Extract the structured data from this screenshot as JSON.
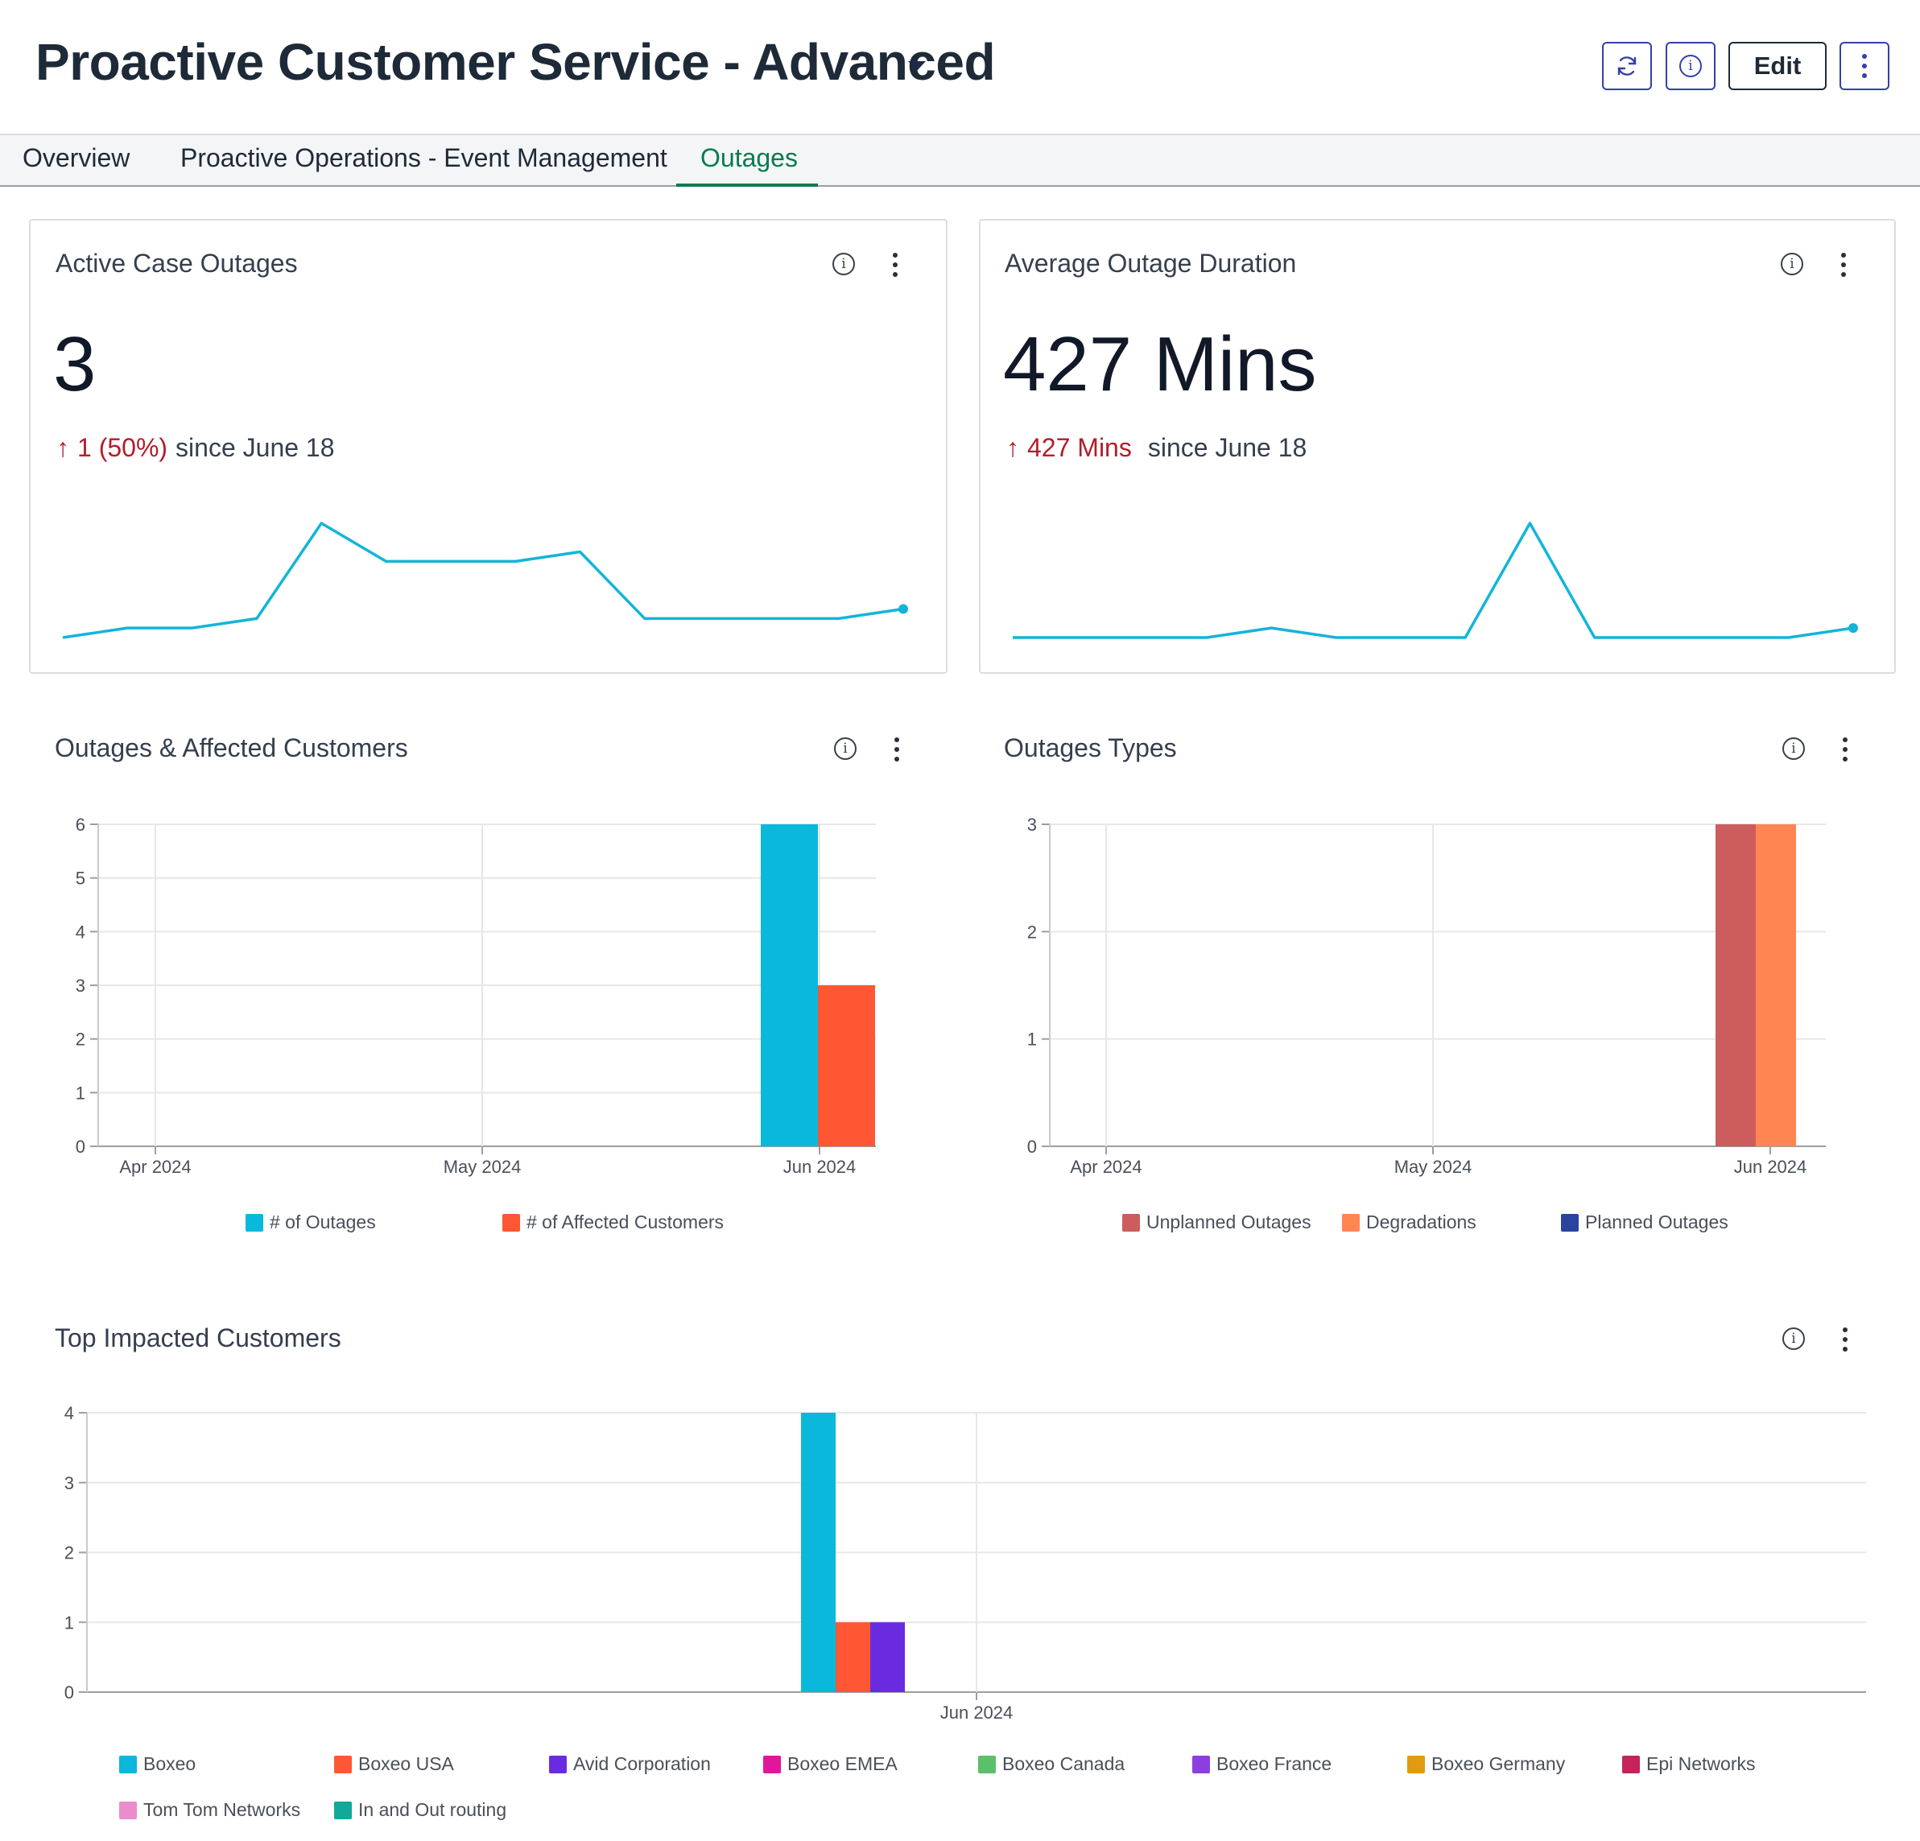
{
  "header": {
    "title": "Proactive Customer Service - Advanced",
    "edit_label": "Edit",
    "icons": [
      "refresh-icon",
      "info-icon",
      "more-vertical-icon",
      "chevron-down-icon"
    ]
  },
  "tabs": [
    {
      "label": "Overview",
      "active": false
    },
    {
      "label": "Proactive Operations - Event Management",
      "active": false
    },
    {
      "label": "Outages",
      "active": true
    }
  ],
  "colors": {
    "accent_tab": "#0a7a4f",
    "sparkline": "#12b5d9",
    "delta_red": "#b31d2b",
    "button_border": "#3340a8"
  },
  "kpi": {
    "active_case_outages": {
      "title": "Active Case Outages",
      "value": "3",
      "delta": "1 (50%)",
      "since": "since June 18",
      "trend": [
        0,
        1,
        1,
        2,
        12,
        8,
        8,
        8,
        9,
        2,
        2,
        2,
        2,
        3
      ]
    },
    "average_outage_duration": {
      "title": "Average Outage Duration",
      "value": "427 Mins",
      "delta": "427 Mins",
      "since": "since June 18",
      "trend": [
        0,
        0,
        0,
        0,
        1,
        0,
        0,
        0,
        12,
        0,
        0,
        0,
        0,
        1
      ]
    }
  },
  "chart_data": [
    {
      "type": "bar",
      "title": "Outages & Affected Customers",
      "categories": [
        "Apr 2024",
        "May 2024",
        "Jun 2024"
      ],
      "ylim": [
        0,
        6
      ],
      "yticks": [
        0,
        1,
        2,
        3,
        4,
        5,
        6
      ],
      "series": [
        {
          "name": "# of Outages",
          "color": "#0ab8dc",
          "values": [
            0,
            0,
            6
          ]
        },
        {
          "name": "# of Affected Customers",
          "color": "#ff5733",
          "values": [
            0,
            0,
            3
          ]
        }
      ],
      "grid": true,
      "legend": "bottom"
    },
    {
      "type": "bar",
      "title": "Outages Types",
      "categories": [
        "Apr 2024",
        "May 2024",
        "Jun 2024"
      ],
      "ylim": [
        0,
        3
      ],
      "yticks": [
        0,
        1,
        2,
        3
      ],
      "series": [
        {
          "name": "Unplanned Outages",
          "color": "#cd5c5c",
          "values": [
            0,
            0,
            3
          ]
        },
        {
          "name": "Degradations",
          "color": "#ff8552",
          "values": [
            0,
            0,
            3
          ]
        },
        {
          "name": "Planned Outages",
          "color": "#2a43a0",
          "values": [
            0,
            0,
            0
          ]
        }
      ],
      "grid": true,
      "legend": "bottom"
    },
    {
      "type": "bar",
      "title": "Top Impacted Customers",
      "categories": [
        "Jun 2024"
      ],
      "ylim": [
        0,
        4
      ],
      "yticks": [
        0,
        1,
        2,
        3,
        4
      ],
      "series": [
        {
          "name": "Boxeo",
          "color": "#0ab8dc",
          "values": [
            4
          ]
        },
        {
          "name": "Boxeo USA",
          "color": "#ff5733",
          "values": [
            1
          ]
        },
        {
          "name": "Avid Corporation",
          "color": "#6a2be0",
          "values": [
            1
          ]
        },
        {
          "name": "Boxeo EMEA",
          "color": "#e0179a",
          "values": [
            0
          ]
        },
        {
          "name": "Boxeo Canada",
          "color": "#5cbf6a",
          "values": [
            0
          ]
        },
        {
          "name": "Boxeo France",
          "color": "#8e3ee0",
          "values": [
            0
          ]
        },
        {
          "name": "Boxeo Germany",
          "color": "#e39a0e",
          "values": [
            0
          ]
        },
        {
          "name": "Epi Networks",
          "color": "#c4245a",
          "values": [
            0
          ]
        },
        {
          "name": "Tom Tom Networks",
          "color": "#ec8ccc",
          "values": [
            0
          ]
        },
        {
          "name": "In and Out routing",
          "color": "#12a89a",
          "values": [
            0
          ]
        }
      ],
      "grid": true,
      "legend": "bottom"
    }
  ]
}
